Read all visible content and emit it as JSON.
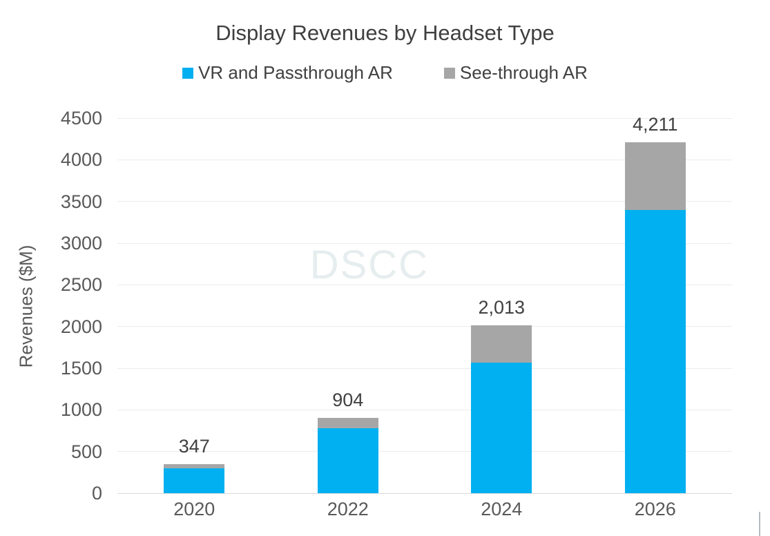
{
  "chart_data": {
    "type": "bar",
    "stacked": true,
    "title": "Display Revenues by Headset Type",
    "xlabel": "",
    "ylabel": "Revenues ($M)",
    "categories": [
      "2020",
      "2022",
      "2024",
      "2026"
    ],
    "series": [
      {
        "name": "VR and Passthrough AR",
        "color": "#00b0f0",
        "values": [
          300,
          780,
          1570,
          3400
        ]
      },
      {
        "name": "See-through AR",
        "color": "#a6a6a6",
        "values": [
          47,
          124,
          443,
          811
        ]
      }
    ],
    "totals": [
      "347",
      "904",
      "2,013",
      "4,211"
    ],
    "ylim": [
      0,
      4500
    ],
    "ytick_step": 500,
    "yticks": [
      "0",
      "500",
      "1000",
      "1500",
      "2000",
      "2500",
      "3000",
      "3500",
      "4000",
      "4500"
    ],
    "grid": true,
    "legend_position": "top",
    "watermark": "DSCC"
  }
}
